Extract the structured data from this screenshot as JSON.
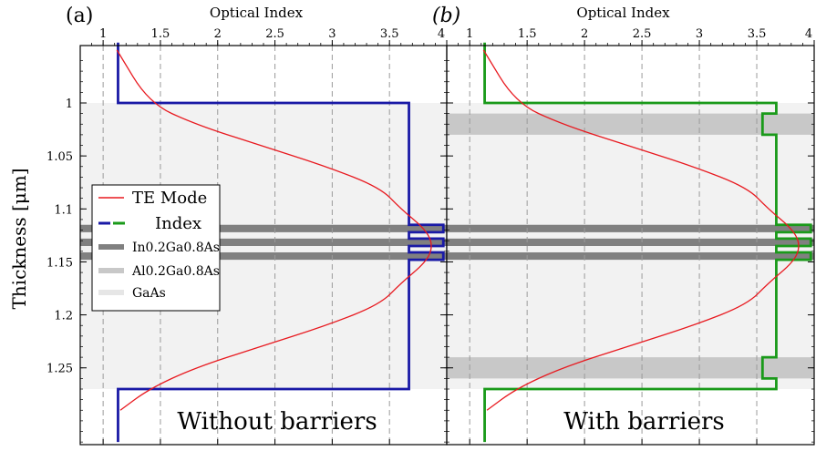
{
  "chart_data": [
    {
      "panel_label": "(a)",
      "type": "line",
      "title": "Optical Index",
      "ylabel": "Thickness [μm]",
      "annotation": "Without barriers",
      "xlim": [
        0.8,
        4.0
      ],
      "ylim": [
        1.27,
        0.943
      ],
      "x_ticks": [
        "1",
        "1.5",
        "2",
        "2.5",
        "3",
        "3.5",
        "4"
      ],
      "y_ticks": [
        "1",
        "1.05",
        "1.1",
        "1.15",
        "1.2",
        "1.25"
      ],
      "index_color": "#1a1aa6",
      "series": [
        {
          "kind": "index",
          "points": [
            [
              1.13,
              0.943
            ],
            [
              1.13,
              1.0
            ],
            [
              3.67,
              1.0
            ],
            [
              3.67,
              1.115
            ],
            [
              3.97,
              1.115
            ],
            [
              3.97,
              1.122
            ],
            [
              3.67,
              1.122
            ],
            [
              3.67,
              1.128
            ],
            [
              3.97,
              1.128
            ],
            [
              3.97,
              1.135
            ],
            [
              3.67,
              1.135
            ],
            [
              3.67,
              1.141
            ],
            [
              3.97,
              1.141
            ],
            [
              3.97,
              1.148
            ],
            [
              3.67,
              1.148
            ],
            [
              3.67,
              1.27
            ],
            [
              1.13,
              1.27
            ],
            [
              1.13,
              1.32
            ]
          ]
        },
        {
          "kind": "te_mode",
          "points": [
            [
              1.12,
              0.95
            ],
            [
              1.4,
              1.0
            ],
            [
              1.8,
              1.02
            ],
            [
              2.37,
              1.04
            ],
            [
              2.95,
              1.06
            ],
            [
              3.42,
              1.08
            ],
            [
              3.6,
              1.1
            ],
            [
              3.82,
              1.12
            ],
            [
              3.88,
              1.135
            ],
            [
              3.82,
              1.15
            ],
            [
              3.6,
              1.17
            ],
            [
              3.42,
              1.19
            ],
            [
              2.95,
              1.21
            ],
            [
              2.37,
              1.23
            ],
            [
              1.8,
              1.25
            ],
            [
              1.4,
              1.27
            ],
            [
              1.15,
              1.29
            ]
          ]
        }
      ],
      "bands": [
        {
          "material": "GaAs",
          "y0": 1.0,
          "y1": 1.27
        },
        {
          "material": "InGaAs",
          "y0": 1.115,
          "y1": 1.122
        },
        {
          "material": "InGaAs",
          "y0": 1.128,
          "y1": 1.135
        },
        {
          "material": "InGaAs",
          "y0": 1.141,
          "y1": 1.148
        }
      ]
    },
    {
      "panel_label": "(b)",
      "type": "line",
      "title": "Optical Index",
      "annotation": "With barriers",
      "xlim": [
        0.8,
        4.0
      ],
      "ylim": [
        1.27,
        0.943
      ],
      "x_ticks": [
        "1",
        "1.5",
        "2",
        "2.5",
        "3",
        "3.5",
        "4"
      ],
      "index_color": "#1a9a1a",
      "series": [
        {
          "kind": "index",
          "points": [
            [
              1.13,
              0.943
            ],
            [
              1.13,
              1.0
            ],
            [
              3.67,
              1.0
            ],
            [
              3.67,
              1.01
            ],
            [
              3.55,
              1.01
            ],
            [
              3.55,
              1.03
            ],
            [
              3.67,
              1.03
            ],
            [
              3.67,
              1.115
            ],
            [
              3.97,
              1.115
            ],
            [
              3.97,
              1.122
            ],
            [
              3.67,
              1.122
            ],
            [
              3.67,
              1.128
            ],
            [
              3.97,
              1.128
            ],
            [
              3.97,
              1.135
            ],
            [
              3.67,
              1.135
            ],
            [
              3.67,
              1.141
            ],
            [
              3.97,
              1.141
            ],
            [
              3.97,
              1.148
            ],
            [
              3.67,
              1.148
            ],
            [
              3.67,
              1.24
            ],
            [
              3.55,
              1.24
            ],
            [
              3.55,
              1.26
            ],
            [
              3.67,
              1.26
            ],
            [
              3.67,
              1.27
            ],
            [
              1.13,
              1.27
            ],
            [
              1.13,
              1.32
            ]
          ]
        },
        {
          "kind": "te_mode",
          "points": [
            [
              1.12,
              0.95
            ],
            [
              1.4,
              1.0
            ],
            [
              1.8,
              1.02
            ],
            [
              2.37,
              1.04
            ],
            [
              2.95,
              1.06
            ],
            [
              3.42,
              1.08
            ],
            [
              3.6,
              1.1
            ],
            [
              3.82,
              1.12
            ],
            [
              3.88,
              1.135
            ],
            [
              3.82,
              1.15
            ],
            [
              3.6,
              1.17
            ],
            [
              3.42,
              1.19
            ],
            [
              2.95,
              1.21
            ],
            [
              2.37,
              1.23
            ],
            [
              1.8,
              1.25
            ],
            [
              1.4,
              1.27
            ],
            [
              1.15,
              1.29
            ]
          ]
        }
      ],
      "bands": [
        {
          "material": "GaAs",
          "y0": 1.0,
          "y1": 1.27
        },
        {
          "material": "AlGaAs",
          "y0": 1.01,
          "y1": 1.03
        },
        {
          "material": "AlGaAs",
          "y0": 1.24,
          "y1": 1.26
        },
        {
          "material": "InGaAs",
          "y0": 1.115,
          "y1": 1.122
        },
        {
          "material": "InGaAs",
          "y0": 1.128,
          "y1": 1.135
        },
        {
          "material": "InGaAs",
          "y0": 1.141,
          "y1": 1.148
        }
      ]
    }
  ],
  "legend": {
    "placement": "left, middle of panel (a)",
    "te_mode": "TE Mode",
    "index": "Index",
    "ingaas": "In0.2Ga0.8As",
    "algaas": "Al0.2Ga0.8As",
    "gaas": "GaAs"
  },
  "colors": {
    "te_mode": "#e8191f",
    "gaas_band": "#f2f2f2",
    "algaas_band": "#c8c8c8",
    "ingaas_band": "#808080",
    "grid": "#9a9a9a"
  }
}
